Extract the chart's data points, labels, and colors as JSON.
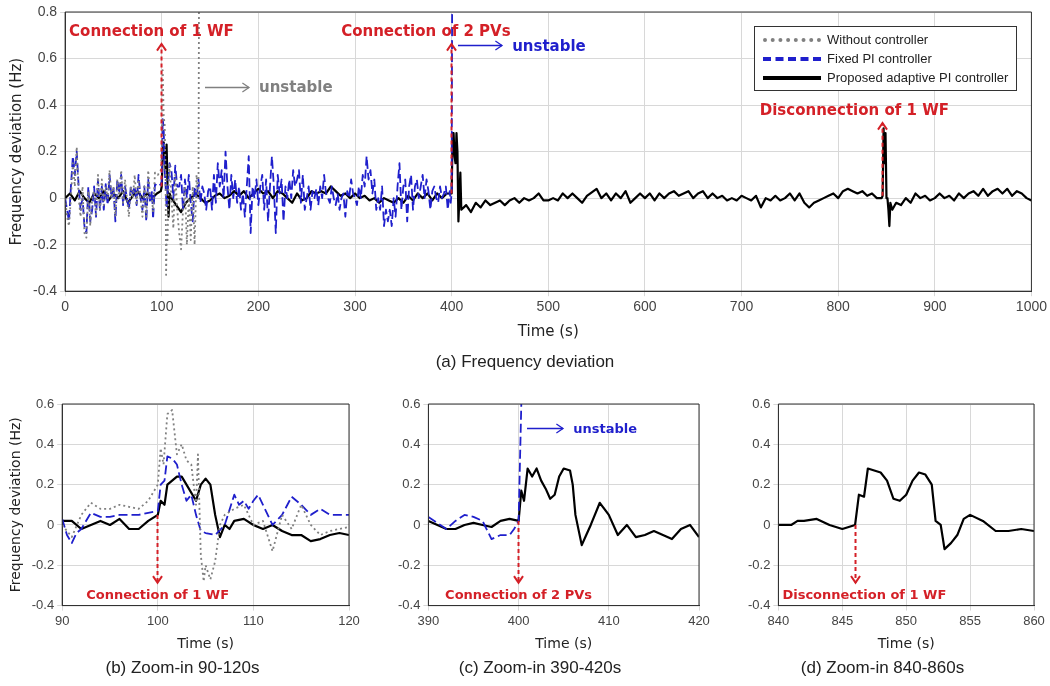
{
  "chart_data": [
    {
      "type": "line",
      "title": "(a) Frequency deviation",
      "xlabel": "Time (s)",
      "ylabel": "Frequency deviation (Hz)",
      "xlim": [
        0,
        1000
      ],
      "xticks": [
        0,
        100,
        200,
        300,
        400,
        500,
        600,
        700,
        800,
        900,
        1000
      ],
      "ylim": [
        -0.4,
        0.8
      ],
      "yticks": [
        -0.4,
        -0.2,
        0,
        0.2,
        0.4,
        0.6,
        0.8
      ],
      "grid": true,
      "legend": "top right",
      "annotations": [
        {
          "text": "Connection of 1 WF",
          "x": 100,
          "y": 0.05
        },
        {
          "text": "Connection of 2 PVs",
          "x": 400,
          "y": 0.02
        },
        {
          "text": "Disconnection of 1 WF",
          "x": 846,
          "y": 0.01
        },
        "unstable",
        "unstable"
      ],
      "series": [
        {
          "name": "Without controller",
          "color": "#808080",
          "line_style": "dotted",
          "x": [
            0,
            2,
            4,
            6,
            8,
            10,
            12,
            14,
            16,
            18,
            20,
            22,
            24,
            26,
            28,
            30,
            32,
            34,
            36,
            38,
            40,
            42,
            44,
            46,
            48,
            50,
            52,
            54,
            56,
            58,
            60,
            62,
            64,
            66,
            68,
            70,
            72,
            74,
            76,
            78,
            80,
            82,
            84,
            86,
            88,
            90,
            91,
            93,
            96,
            99,
            100,
            101,
            102,
            103,
            104,
            104.5,
            105,
            106,
            107,
            108,
            110,
            112,
            114,
            116,
            118,
            120,
            122,
            124,
            126,
            128,
            130,
            132,
            134,
            136,
            138,
            138.5
          ],
          "values": [
            0,
            -0.08,
            -0.12,
            0,
            0.15,
            0.05,
            0.22,
            0,
            -0.08,
            0.05,
            -0.15,
            -0.17,
            0.03,
            -0.12,
            0,
            0.03,
            -0.08,
            0.1,
            -0.05,
            0.08,
            -0.03,
            0.05,
            0,
            0.12,
            0,
            0.05,
            -0.08,
            0.08,
            0,
            0.12,
            -0.02,
            0.08,
            0,
            -0.08,
            0.05,
            0,
            0.1,
            -0.03,
            0.08,
            0,
            -0.08,
            0.05,
            -0.08,
            0.12,
            0,
            0,
            -0.06,
            0.11,
            0.1,
            0.12,
            0.2,
            0.55,
            0.35,
            0.32,
            0.1,
            -0.33,
            -0.2,
            -0.18,
            0.05,
            0.15,
            0,
            -0.13,
            0.1,
            -0.05,
            -0.15,
            -0.22,
            -0.05,
            0.05,
            -0.2,
            0,
            -0.18,
            0.05,
            -0.2,
            0.1,
            0,
            0.8
          ]
        },
        {
          "name": "Fixed PI controller",
          "color": "#1f1fcc",
          "line_style": "dashed",
          "x": [
            0,
            2,
            4,
            6,
            8,
            10,
            12,
            14,
            16,
            18,
            20,
            22,
            24,
            26,
            28,
            30,
            32,
            34,
            36,
            38,
            40,
            42,
            44,
            46,
            48,
            50,
            52,
            54,
            56,
            58,
            60,
            62,
            64,
            66,
            68,
            70,
            72,
            74,
            76,
            78,
            80,
            82,
            84,
            86,
            88,
            90,
            91,
            93,
            96,
            99,
            100,
            101,
            102,
            103,
            104,
            105,
            108,
            110,
            112,
            114,
            116,
            118,
            120,
            122,
            124,
            126,
            128,
            130,
            132,
            134,
            136,
            138,
            140,
            142,
            144,
            146,
            148,
            150,
            152,
            154,
            156,
            158,
            160,
            162,
            164,
            166,
            168,
            170,
            172,
            174,
            176,
            178,
            180,
            182,
            184,
            186,
            188,
            190,
            192,
            194,
            196,
            198,
            200,
            202,
            204,
            206,
            208,
            210,
            212,
            214,
            216,
            218,
            220,
            222,
            224,
            226,
            228,
            230,
            232,
            234,
            236,
            238,
            240,
            242,
            244,
            246,
            248,
            250,
            252,
            254,
            256,
            258,
            260,
            262,
            264,
            266,
            268,
            270,
            272,
            274,
            276,
            278,
            280,
            282,
            284,
            286,
            288,
            290,
            292,
            294,
            296,
            298,
            300,
            302,
            304,
            306,
            308,
            310,
            312,
            314,
            316,
            318,
            320,
            322,
            324,
            326,
            328,
            330,
            332,
            334,
            336,
            338,
            340,
            342,
            344,
            346,
            348,
            350,
            352,
            354,
            356,
            358,
            360,
            362,
            364,
            366,
            368,
            370,
            372,
            374,
            376,
            378,
            380,
            382,
            384,
            386,
            388,
            390,
            392,
            394,
            396,
            398,
            399,
            400,
            400.5
          ],
          "values": [
            0,
            -0.05,
            -0.1,
            0.05,
            0.18,
            0.1,
            0.2,
            0.05,
            -0.05,
            0,
            -0.12,
            -0.15,
            0.05,
            -0.1,
            -0.05,
            0.05,
            -0.08,
            0.08,
            -0.05,
            0.05,
            -0.05,
            0.06,
            -0.03,
            0.1,
            0,
            0.05,
            -0.1,
            0.08,
            0.02,
            0.1,
            -0.03,
            0.05,
            0,
            -0.05,
            0.05,
            0.02,
            0.05,
            -0.03,
            0.1,
            0,
            -0.05,
            0.05,
            -0.1,
            0.08,
            -0.02,
            0.03,
            -0.09,
            0.06,
            0.05,
            0.06,
            0.07,
            0.34,
            0.3,
            0.12,
            0.05,
            -0.04,
            0.15,
            0.12,
            0,
            0.14,
            0.05,
            0.05,
            0.1,
            -0.05,
            0.08,
            0,
            0.1,
            -0.02,
            -0.1,
            0.05,
            0,
            0.08,
            -0.02,
            0.05,
            0.02,
            -0.05,
            0.03,
            0.05,
            -0.05,
            0.1,
            -0.02,
            0.15,
            0.05,
            0.12,
            0,
            0.2,
            0.05,
            -0.05,
            0.1,
            0,
            0.08,
            -0.02,
            0.05,
            -0.05,
            0.02,
            -0.08,
            0.05,
            0.18,
            -0.15,
            0.05,
            0,
            0.08,
            -0.03,
            0.05,
            0.1,
            -0.05,
            0.08,
            -0.1,
            0.05,
            0.18,
            0.05,
            -0.15,
            0.1,
            0.02,
            0.08,
            -0.1,
            0.05,
            0,
            0.08,
            0,
            0.12,
            0.05,
            0.08,
            0.12,
            -0.02,
            0.1,
            -0.05,
            0,
            0.05,
            -0.05,
            0.03,
            0,
            0.04,
            -0.03,
            0.05,
            0,
            0.1,
            0.02,
            0,
            -0.02,
            0.05,
            0,
            -0.03,
            0.02,
            -0.05,
            0,
            0.02,
            -0.08,
            0.03,
            0,
            0.08,
            0.02,
            0,
            -0.03,
            0.05,
            0,
            0.1,
            0.05,
            0.18,
            0.08,
            0.12,
            0.02,
            0.08,
            -0.05,
            0,
            -0.05,
            0.05,
            -0.12,
            -0.05,
            -0.1,
            -0.05,
            -0.12,
            0,
            -0.08,
            0.05,
            0.15,
            -0.05,
            0.05,
            0.08,
            -0.1,
            0.05,
            0.1,
            -0.05,
            0.05,
            0.08,
            0,
            0.05,
            0.1,
            0,
            0.08,
            0.03,
            -0.05,
            0.03,
            0.05,
            0,
            -0.02,
            0.05,
            0,
            0.02,
            0.05,
            -0.05,
            0.03,
            -0.02,
            0.02,
            0.8
          ]
        },
        {
          "name": "Proposed adaptive PI controller",
          "color": "#000000",
          "line_style": "solid",
          "x": [
            0,
            5,
            10,
            15,
            20,
            25,
            30,
            35,
            40,
            45,
            50,
            55,
            60,
            65,
            70,
            75,
            80,
            85,
            90,
            95,
            99,
            100,
            101,
            102,
            103,
            104,
            105,
            106,
            107,
            108,
            110,
            115,
            120,
            125,
            130,
            135,
            140,
            145,
            150,
            155,
            160,
            165,
            170,
            175,
            180,
            185,
            190,
            195,
            200,
            205,
            210,
            215,
            220,
            225,
            230,
            235,
            240,
            245,
            250,
            255,
            260,
            265,
            270,
            275,
            280,
            285,
            290,
            295,
            300,
            305,
            310,
            315,
            320,
            325,
            330,
            335,
            340,
            345,
            350,
            355,
            360,
            365,
            370,
            375,
            380,
            385,
            390,
            395,
            399,
            400,
            401,
            402,
            403,
            404,
            405,
            406,
            407,
            408,
            409,
            410,
            415,
            420,
            425,
            430,
            435,
            440,
            445,
            450,
            455,
            460,
            465,
            470,
            475,
            480,
            485,
            490,
            495,
            500,
            505,
            510,
            515,
            520,
            525,
            530,
            535,
            540,
            550,
            555,
            560,
            565,
            570,
            575,
            580,
            585,
            590,
            595,
            600,
            605,
            610,
            615,
            620,
            625,
            630,
            635,
            640,
            645,
            650,
            655,
            660,
            665,
            670,
            675,
            680,
            685,
            690,
            695,
            700,
            705,
            710,
            715,
            720,
            725,
            730,
            735,
            740,
            745,
            750,
            755,
            760,
            765,
            770,
            775,
            780,
            785,
            790,
            795,
            800,
            805,
            810,
            815,
            820,
            825,
            830,
            835,
            840,
            845,
            846,
            847,
            848,
            849,
            850,
            851,
            852,
            853,
            854,
            856,
            860,
            865,
            870,
            875,
            880,
            885,
            890,
            895,
            900,
            905,
            910,
            915,
            920,
            925,
            930,
            935,
            940,
            945,
            950,
            955,
            960,
            965,
            970,
            975,
            980,
            985,
            990,
            995,
            1000
          ],
          "values": [
            0,
            0.02,
            -0.01,
            0.03,
            0,
            -0.02,
            0.02,
            0,
            0.03,
            -0.01,
            0.02,
            0,
            0.03,
            -0.02,
            0.01,
            0.03,
            0,
            0.02,
            0,
            0.02,
            0.03,
            0.05,
            0.2,
            0.24,
            0.18,
            0.12,
            0.23,
            0.05,
            -0.08,
            0.02,
            0,
            -0.03,
            -0.06,
            -0.02,
            0,
            0.02,
            0,
            -0.02,
            -0.01,
            0.01,
            0.02,
            0,
            0.01,
            0.03,
            0.01,
            0.03,
            0,
            0.02,
            0.04,
            0.02,
            0.03,
            0,
            0.03,
            0.02,
            0,
            -0.02,
            0.02,
            -0.01,
            0,
            0.03,
            0.02,
            0.03,
            0.02,
            0.05,
            0.03,
            0.01,
            0.02,
            0,
            0.02,
            0,
            0.01,
            -0.01,
            0,
            -0.02,
            0,
            -0.01,
            -0.02,
            0,
            -0.02,
            0.01,
            -0.01,
            0.02,
            0,
            0.02,
            -0.01,
            0.02,
            0,
            0.02,
            0.02,
            0.02,
            0.28,
            0.28,
            0.18,
            0.15,
            0.28,
            0.2,
            -0.1,
            0,
            0.11,
            -0.05,
            -0.03,
            -0.06,
            -0.02,
            -0.04,
            -0.01,
            -0.03,
            -0.02,
            -0.01,
            -0.03,
            -0.01,
            0,
            -0.02,
            0,
            -0.01,
            0,
            0.02,
            -0.01,
            -0.01,
            0,
            -0.01,
            0.02,
            0,
            0.02,
            0,
            -0.02,
            0.01,
            0.04,
            0,
            0.02,
            -0.01,
            0.02,
            0,
            0.03,
            -0.02,
            0,
            0.02,
            0,
            0.02,
            -0.01,
            0.02,
            0,
            0.02,
            0.03,
            0.01,
            0.02,
            0.03,
            0,
            0.02,
            0.03,
            0,
            0.02,
            0,
            0.01,
            -0.01,
            0,
            -0.01,
            0.01,
            0,
            -0.01,
            0.01,
            -0.04,
            0,
            -0.01,
            0.01,
            -0.01,
            0,
            0.02,
            -0.01,
            0.02,
            -0.02,
            -0.04,
            -0.02,
            -0.01,
            0,
            0.01,
            0.02,
            0,
            0.03,
            0.04,
            0.03,
            0.02,
            0.03,
            0.01,
            0.02,
            0,
            0,
            0.01,
            0.3,
            0.15,
            0.28,
            0,
            0,
            -0.05,
            -0.12,
            -0.02,
            -0.05,
            -0.02,
            -0.03,
            0,
            -0.02,
            0.02,
            0,
            0.01,
            -0.01,
            0,
            0.02,
            0,
            0.01,
            -0.01,
            0.02,
            0,
            0.02,
            0.03,
            0.01,
            0.04,
            0.01,
            0.03,
            0.04,
            0.02,
            0.04,
            0.01,
            0.03,
            0.02,
            0,
            -0.01
          ]
        }
      ]
    },
    {
      "type": "line",
      "title": "(b) Zoom-in 90-120s",
      "xlabel": "Time (s)",
      "ylabel": "Frequency deviation (Hz)",
      "xlim": [
        90,
        120
      ],
      "xticks": [
        90,
        100,
        110,
        120
      ],
      "ylim": [
        -0.4,
        0.6
      ],
      "yticks": [
        -0.4,
        -0.2,
        0,
        0.2,
        0.4,
        0.6
      ],
      "grid": true,
      "annotations": [
        {
          "text": "Connection of 1 WF",
          "x": 100,
          "y": 0.05
        }
      ],
      "series": [
        {
          "color": "#808080",
          "line_style": "dotted",
          "x": [
            90,
            91,
            92,
            93,
            94,
            95,
            96,
            97,
            98,
            99,
            100,
            100.3,
            100.6,
            101,
            101.5,
            102,
            102.5,
            103,
            103.5,
            104,
            104.2,
            104.5,
            104.8,
            105,
            105.5,
            106,
            106.5,
            107,
            108,
            109,
            110,
            111,
            112,
            113,
            114,
            115,
            116,
            117,
            118,
            119,
            120
          ],
          "values": [
            0,
            -0.06,
            0.05,
            0.11,
            0.08,
            0.08,
            0.1,
            0.09,
            0.08,
            0.12,
            0.2,
            0.38,
            0.3,
            0.55,
            0.57,
            0.35,
            0.4,
            0.32,
            0.3,
            0.1,
            0.35,
            -0.15,
            -0.28,
            -0.2,
            -0.27,
            -0.18,
            0,
            0.05,
            0.08,
            0.1,
            0,
            0.02,
            -0.13,
            0.05,
            -0.02,
            0.1,
            0,
            -0.05,
            -0.03,
            -0.02,
            -0.01
          ]
        },
        {
          "color": "#1f1fcc",
          "line_style": "dashed",
          "x": [
            90,
            90.5,
            91,
            91.5,
            92,
            93,
            94,
            95,
            96,
            97,
            98,
            99,
            100,
            100.3,
            100.7,
            101,
            101.5,
            102,
            102.5,
            103,
            103.5,
            104,
            104.5,
            105,
            106,
            107,
            108,
            108.5,
            109,
            109.5,
            110,
            110.5,
            111,
            112,
            113,
            114,
            115,
            116,
            117,
            118,
            119,
            120
          ],
          "values": [
            0.03,
            -0.05,
            -0.09,
            -0.04,
            -0.02,
            0.06,
            0.04,
            0.04,
            0.05,
            0.05,
            0.05,
            0.06,
            0.07,
            0.2,
            0.22,
            0.34,
            0.33,
            0.3,
            0.2,
            0.12,
            0.15,
            0.05,
            -0.03,
            -0.04,
            -0.05,
            0,
            0.15,
            0.1,
            0.12,
            0.08,
            0.12,
            0.15,
            0.1,
            0,
            0.05,
            0.14,
            0.1,
            0.05,
            0.08,
            0.05,
            0.05,
            0.05
          ]
        },
        {
          "color": "#000000",
          "line_style": "solid",
          "x": [
            90,
            91,
            92,
            93,
            94,
            95,
            96,
            97,
            98,
            99,
            100,
            100.3,
            100.7,
            101,
            101.5,
            102,
            102.5,
            103,
            104,
            104.5,
            105,
            105.5,
            106,
            106.5,
            107,
            107.5,
            108,
            109,
            110,
            111,
            112,
            113,
            114,
            115,
            116,
            117,
            118,
            119,
            120
          ],
          "values": [
            0.02,
            0.02,
            -0.02,
            0,
            0.02,
            0,
            0.03,
            -0.02,
            -0.02,
            0.02,
            0.05,
            0.12,
            0.1,
            0.2,
            0.22,
            0.24,
            0.24,
            0.2,
            0.12,
            0.2,
            0.23,
            0.2,
            0.05,
            -0.06,
            0,
            -0.02,
            0.02,
            0.03,
            0,
            -0.02,
            0,
            -0.03,
            -0.05,
            -0.05,
            -0.08,
            -0.07,
            -0.05,
            -0.04,
            -0.05
          ]
        }
      ]
    },
    {
      "type": "line",
      "title": "(c) Zoom-in 390-420s",
      "xlabel": "Time (s)",
      "xlim": [
        390,
        420
      ],
      "xticks": [
        390,
        400,
        410,
        420
      ],
      "ylim": [
        -0.4,
        0.6
      ],
      "yticks": [
        -0.4,
        -0.2,
        0,
        0.2,
        0.4,
        0.6
      ],
      "grid": true,
      "annotations": [
        {
          "text": "Connection of 2 PVs",
          "x": 400,
          "y": 0.02
        },
        "unstable"
      ],
      "series": [
        {
          "color": "#1f1fcc",
          "line_style": "dashed",
          "x": [
            390,
            391,
            392,
            393,
            394,
            395,
            396,
            397,
            398,
            399,
            399.5,
            400,
            400.3
          ],
          "values": [
            0.04,
            0.01,
            -0.02,
            0.02,
            0.05,
            0.04,
            0.02,
            -0.07,
            -0.05,
            -0.05,
            -0.02,
            0.02,
            0.6
          ]
        },
        {
          "color": "#000000",
          "line_style": "solid",
          "x": [
            390,
            391,
            392,
            393,
            394,
            395,
            396,
            397,
            398,
            399,
            400,
            400.3,
            400.6,
            401,
            401.5,
            402,
            402.5,
            403,
            403.5,
            404,
            404.5,
            405,
            405.7,
            406,
            406.3,
            407,
            407.5,
            408,
            409,
            410,
            411,
            412,
            413,
            414,
            415,
            416,
            417,
            418,
            419,
            420
          ],
          "values": [
            0.02,
            0,
            -0.02,
            -0.02,
            0,
            0.01,
            0,
            -0.01,
            0.02,
            0.03,
            0.02,
            0.17,
            0.12,
            0.28,
            0.24,
            0.28,
            0.22,
            0.18,
            0.13,
            0.15,
            0.24,
            0.28,
            0.27,
            0.2,
            0.05,
            -0.1,
            -0.05,
            0,
            0.11,
            0.05,
            -0.05,
            0,
            -0.06,
            -0.05,
            -0.03,
            -0.05,
            -0.07,
            -0.02,
            0,
            -0.06
          ]
        }
      ]
    },
    {
      "type": "line",
      "title": "(d) Zoom-in 840-860s",
      "xlabel": "Time (s)",
      "xlim": [
        840,
        860
      ],
      "xticks": [
        840,
        845,
        850,
        855,
        860
      ],
      "ylim": [
        -0.4,
        0.6
      ],
      "yticks": [
        -0.4,
        -0.2,
        0,
        0.2,
        0.4,
        0.6
      ],
      "grid": true,
      "annotations": [
        {
          "text": "Disconnection of 1 WF",
          "x": 846,
          "y": 0
        }
      ],
      "series": [
        {
          "color": "#000000",
          "line_style": "solid",
          "x": [
            840,
            841,
            841.5,
            842,
            843,
            844,
            845,
            846,
            846.3,
            846.7,
            847,
            847.5,
            848,
            848.5,
            849,
            849.5,
            850,
            850.5,
            851,
            851.5,
            852,
            852.3,
            852.7,
            853,
            853.5,
            854,
            854.5,
            855,
            856,
            857,
            858,
            859,
            860
          ],
          "values": [
            0,
            0,
            0.02,
            0.02,
            0.03,
            0,
            -0.02,
            0,
            0.15,
            0.14,
            0.28,
            0.27,
            0.26,
            0.22,
            0.13,
            0.12,
            0.15,
            0.22,
            0.26,
            0.25,
            0.2,
            0.02,
            0,
            -0.12,
            -0.09,
            -0.05,
            0.03,
            0.05,
            0.02,
            -0.03,
            -0.03,
            -0.02,
            -0.03
          ]
        }
      ]
    }
  ]
}
